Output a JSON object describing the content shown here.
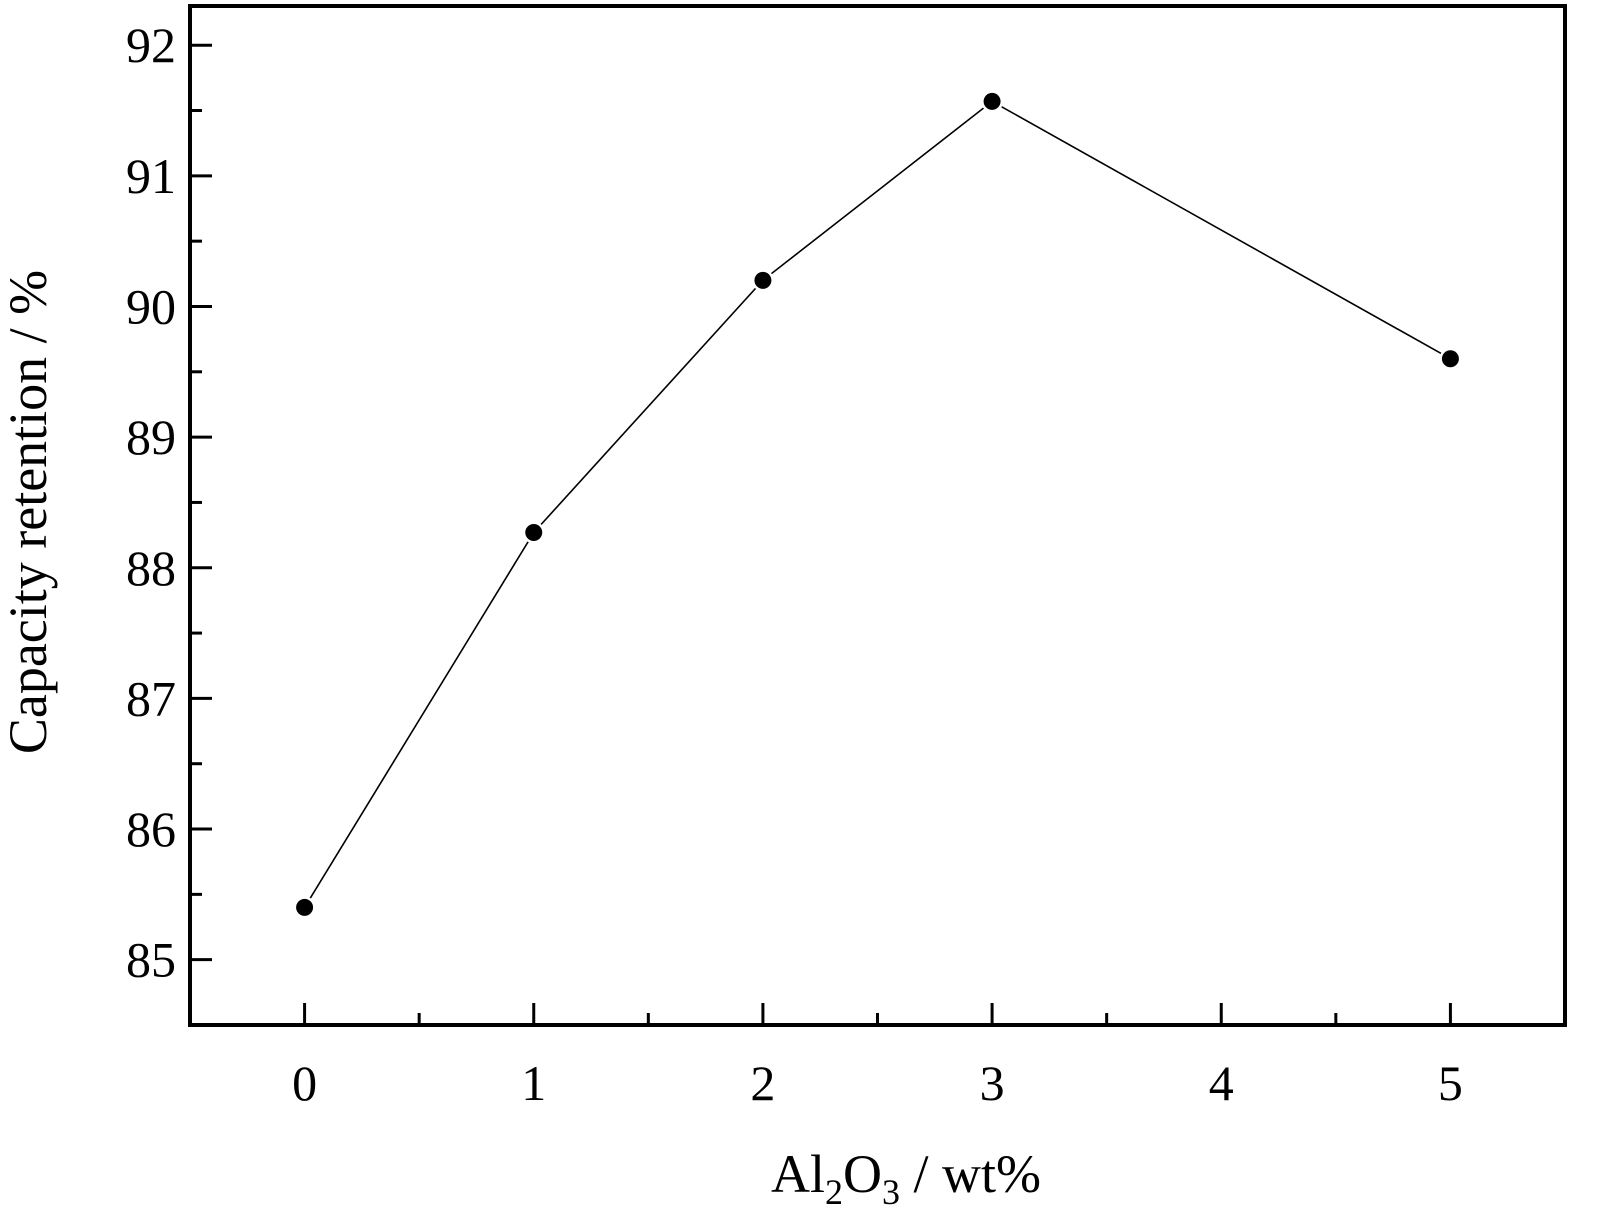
{
  "chart_data": {
    "type": "line",
    "title": "",
    "xlabel": {
      "prefix": "Al",
      "sub1": "2",
      "mid": "O",
      "sub2": "3",
      "suffix": " / wt%"
    },
    "ylabel": "Capacity retention / %",
    "xlim": [
      -0.5,
      5.5
    ],
    "ylim": [
      84.5,
      92.3
    ],
    "x_ticks": [
      0,
      1,
      2,
      3,
      4,
      5
    ],
    "x_minor_ticks": [
      0.5,
      1.5,
      2.5,
      3.5,
      4.5
    ],
    "y_ticks": [
      85,
      86,
      87,
      88,
      89,
      90,
      91,
      92
    ],
    "y_minor_ticks": [
      85.5,
      86.5,
      87.5,
      88.5,
      89.5,
      90.5,
      91.5
    ],
    "grid": false,
    "series": [
      {
        "x": [
          0,
          1,
          2,
          3,
          5
        ],
        "y": [
          85.4,
          88.27,
          90.2,
          91.57,
          89.6
        ],
        "marker": "circle",
        "color": "#000000"
      }
    ]
  }
}
